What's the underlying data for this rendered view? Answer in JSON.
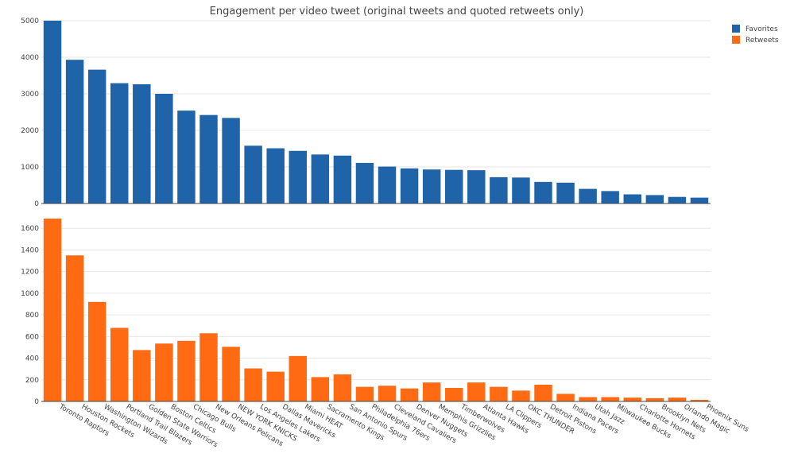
{
  "chart_data": {
    "type": "bar",
    "title": "Engagement per video tweet (original tweets and quoted retweets only)",
    "categories": [
      "Toronto Raptors",
      "Houston Rockets",
      "Washington Wizards",
      "Portland Trail Blazers",
      "Golden State Warriors",
      "Boston Celtics",
      "Chicago Bulls",
      "New Orleans Pelicans",
      "NEW YORK KNICKS",
      "Los Angeles Lakers",
      "Dallas Mavericks",
      "Miami HEAT",
      "Sacramento Kings",
      "San Antonio Spurs",
      "Philadelphia 76ers",
      "Cleveland Cavaliers",
      "Denver Nuggets",
      "Memphis Grizzlies",
      "Timberwolves",
      "Atlanta Hawks",
      "LA Clippers",
      "OKC THUNDER",
      "Detroit Pistons",
      "Indiana Pacers",
      "Utah Jazz",
      "Milwaukee Bucks",
      "Charlotte Hornets",
      "Brooklyn Nets",
      "Orlando Magic",
      "Phoenix Suns"
    ],
    "series": [
      {
        "name": "Favorites",
        "color": "#1f63a8",
        "values": [
          5000,
          3930,
          3660,
          3290,
          3260,
          3000,
          2540,
          2420,
          2340,
          1580,
          1510,
          1440,
          1340,
          1310,
          1110,
          1010,
          960,
          930,
          920,
          910,
          720,
          710,
          590,
          570,
          400,
          340,
          250,
          230,
          180,
          160
        ],
        "ylim": [
          0,
          5000
        ],
        "yticks": [
          0,
          1000,
          2000,
          3000,
          4000,
          5000
        ]
      },
      {
        "name": "Retweets",
        "color": "#ff6a13",
        "values": [
          1690,
          1350,
          920,
          680,
          475,
          535,
          560,
          630,
          505,
          305,
          275,
          420,
          225,
          250,
          135,
          145,
          120,
          175,
          125,
          175,
          135,
          100,
          155,
          70,
          40,
          40,
          35,
          30,
          35,
          15
        ],
        "ylim": [
          0,
          1690
        ],
        "yticks": [
          0,
          200,
          400,
          600,
          800,
          1000,
          1200,
          1400,
          1600
        ]
      }
    ],
    "legend": "top-right"
  }
}
